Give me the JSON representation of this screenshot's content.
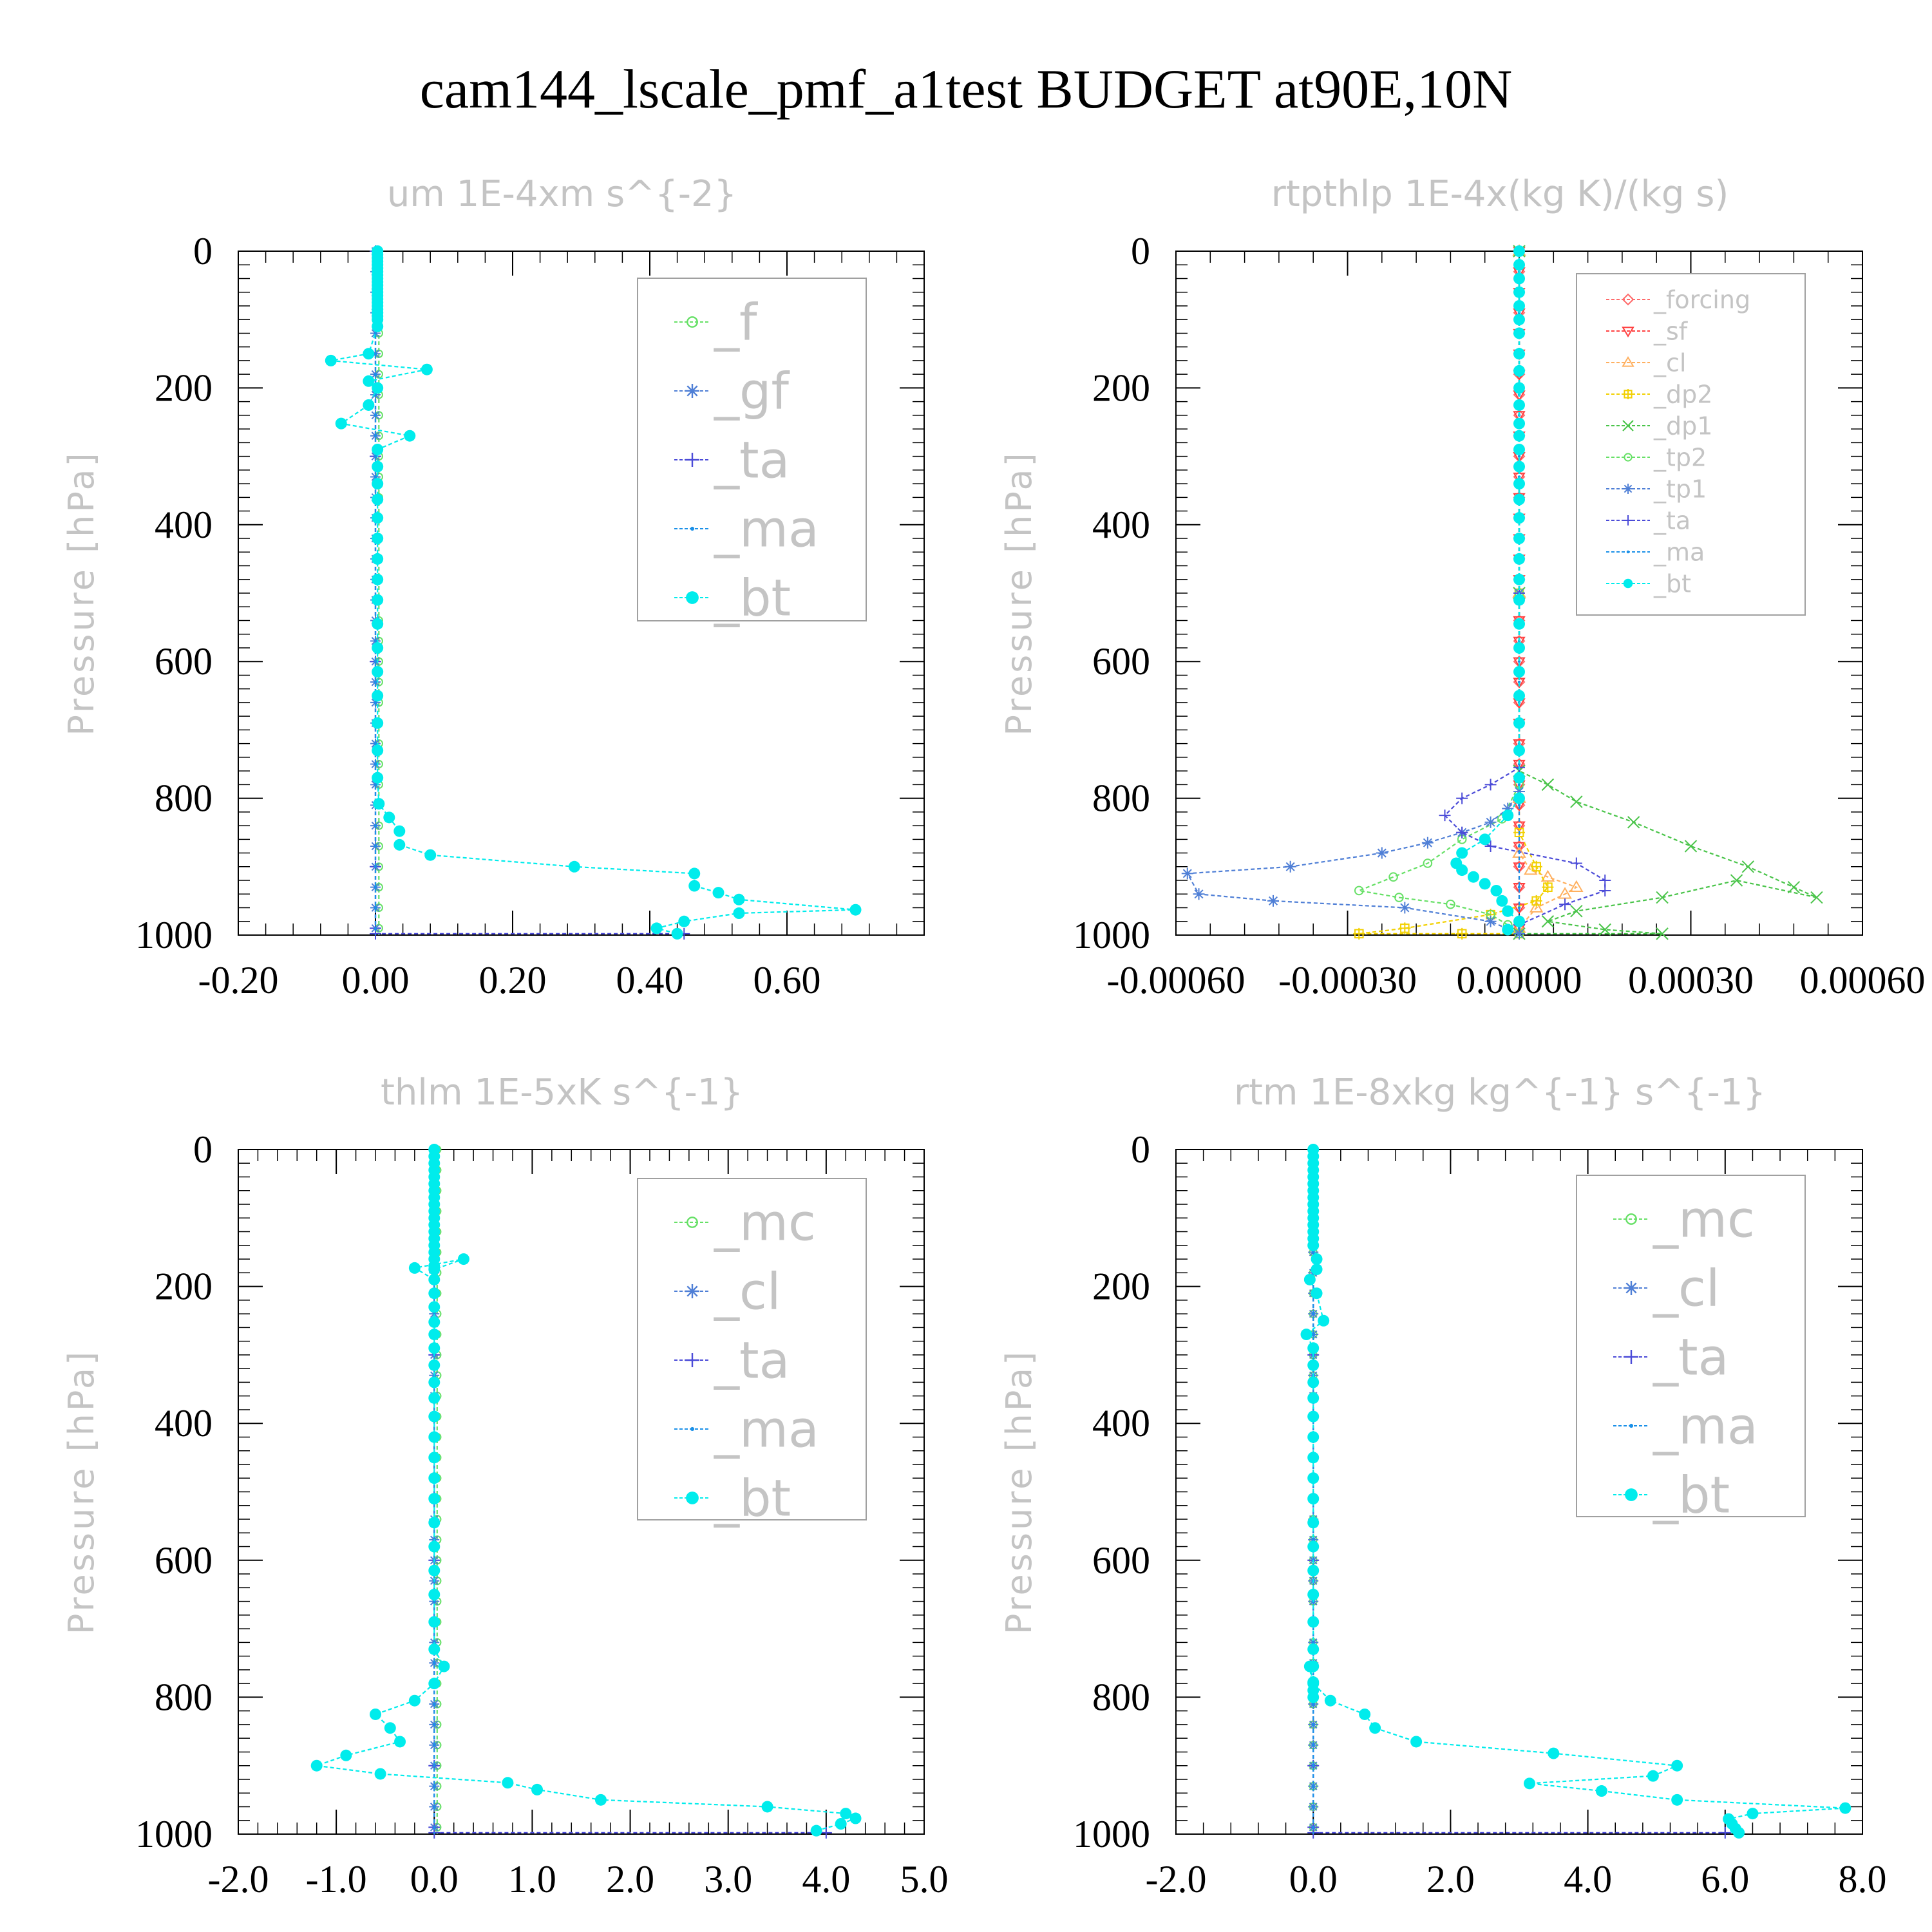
{
  "title": "cam144_lscale_pmf_a1test  BUDGET at90E,10N",
  "colors": {
    "forcing": "#ff6a6a",
    "sf": "#ff4040",
    "cl_tp": "#ffb060",
    "dp2": "#f2d000",
    "dp1": "#49c449",
    "tp2": "#66e066",
    "tp1": "#4f7fd6",
    "ta": "#4b4bd8",
    "ma": "#1a90e8",
    "bt": "#00ecec",
    "f": "#66e066",
    "gf": "#4f7fd6",
    "mc": "#66e066",
    "cl": "#4f7fd6"
  },
  "chart_data": [
    {
      "type": "line",
      "title": "um   1E-4xm s^{-2}",
      "ylabel": "Pressure [hPa]",
      "xlim": [
        -0.2,
        0.8
      ],
      "ylim": [
        1000,
        0
      ],
      "xticks": [
        "-0.20",
        "0.00",
        "0.20",
        "0.40",
        "0.60"
      ],
      "yticks": [
        "0",
        "200",
        "400",
        "600",
        "800",
        "1000"
      ],
      "legend": "top-right",
      "series": [
        {
          "name": "_f",
          "marker": "circle-open",
          "color_key": "f",
          "x": [
            0.005
          ],
          "y": [
            0
          ]
        },
        {
          "name": "_gf",
          "marker": "star",
          "color_key": "gf",
          "x": [
            0.0
          ],
          "y": [
            0
          ]
        },
        {
          "name": "_ta",
          "marker": "plus",
          "color_key": "ta",
          "x": [
            0,
            0,
            0,
            0,
            0,
            0,
            0.45
          ],
          "y": [
            0,
            300,
            600,
            900,
            990,
            998,
            998
          ]
        },
        {
          "name": "_ma",
          "marker": "dot",
          "color_key": "ma",
          "x": [
            0
          ],
          "y": [
            0
          ]
        },
        {
          "name": "_bt",
          "marker": "dot-filled",
          "color_key": "bt",
          "x": [
            0.003,
            0.003,
            0.003,
            0.003,
            0.003,
            0.003,
            0.003,
            0.003,
            0.003,
            0.003,
            0.003,
            0.003,
            0.003,
            0.003,
            0.003,
            0.003,
            0.003,
            0.003,
            0.003,
            0.003,
            0.003,
            0.003,
            -0.01,
            -0.065,
            0.075,
            -0.01,
            0.003,
            -0.01,
            -0.05,
            0.05,
            0.003,
            0.003,
            0.003,
            0.003,
            0.003,
            0.003,
            0.003,
            0.003,
            0.003,
            0.003,
            0.003,
            0.003,
            0.003,
            0.003,
            0.003,
            0.003,
            0.005,
            0.02,
            0.035,
            0.035,
            0.08,
            0.29,
            0.465,
            0.465,
            0.5,
            0.53,
            0.7,
            0.53,
            0.45,
            0.41,
            0.44
          ],
          "y": [
            0,
            5,
            10,
            15,
            20,
            25,
            30,
            35,
            40,
            45,
            50,
            55,
            60,
            65,
            70,
            75,
            80,
            85,
            90,
            95,
            100,
            110,
            150,
            160,
            173,
            190,
            200,
            225,
            252,
            270,
            290,
            315,
            340,
            363,
            390,
            420,
            450,
            480,
            510,
            545,
            580,
            615,
            650,
            690,
            730,
            770,
            808,
            828,
            848,
            868,
            883,
            900,
            910,
            928,
            938,
            948,
            963,
            968,
            980,
            990,
            998
          ]
        }
      ]
    },
    {
      "type": "line",
      "title": "rtpthlp   1E-4x(kg K)/(kg s)",
      "ylabel": "Pressure [hPa]",
      "xlim": [
        -0.0006,
        0.0006
      ],
      "ylim": [
        1000,
        0
      ],
      "xticks": [
        "-0.00060",
        "-0.00030",
        "0.00000",
        "0.00030",
        "0.00060"
      ],
      "yticks": [
        "0",
        "200",
        "400",
        "600",
        "800",
        "1000"
      ],
      "legend": "top-right",
      "series": [
        {
          "name": "_forcing",
          "marker": "diamond",
          "color_key": "forcing",
          "x": [
            0.0
          ],
          "y": [
            0
          ]
        },
        {
          "name": "_sf",
          "marker": "triangle-down",
          "color_key": "sf",
          "x": [
            0.0
          ],
          "y": [
            0
          ]
        },
        {
          "name": "_cl",
          "marker": "triangle-up",
          "color_key": "cl_tp",
          "x": [
            0,
            0,
            0,
            0,
            2e-05,
            5e-05,
            0.0001,
            8e-05,
            3e-05,
            0
          ],
          "y": [
            0,
            500,
            800,
            880,
            905,
            915,
            930,
            940,
            960,
            990
          ]
        },
        {
          "name": "_dp2",
          "marker": "square-plus",
          "color_key": "dp2",
          "x": [
            0,
            0,
            0,
            3e-05,
            5e-05,
            3e-05,
            -5e-05,
            -0.0002,
            -0.00028,
            -0.0001,
            0
          ],
          "y": [
            0,
            500,
            850,
            900,
            930,
            950,
            970,
            990,
            998,
            998,
            998
          ]
        },
        {
          "name": "_dp1",
          "marker": "cross",
          "color_key": "dp1",
          "x": [
            0,
            0,
            0,
            5e-05,
            0.0001,
            0.0002,
            0.0003,
            0.0004,
            0.00048,
            0.00052,
            0.00038,
            0.00025,
            0.0001,
            5e-05,
            0.00015,
            0.00025,
            0
          ],
          "y": [
            0,
            500,
            760,
            780,
            805,
            835,
            870,
            900,
            930,
            945,
            920,
            945,
            965,
            980,
            992,
            998,
            998
          ]
        },
        {
          "name": "_tp2",
          "marker": "circle-open",
          "color_key": "tp2",
          "x": [
            0,
            0,
            0,
            -3e-05,
            -0.0001,
            -0.00016,
            -0.00022,
            -0.00028,
            -0.00021,
            -0.00012,
            -5e-05,
            -2e-05,
            0
          ],
          "y": [
            0,
            500,
            780,
            830,
            860,
            895,
            915,
            935,
            945,
            955,
            970,
            985,
            998
          ]
        },
        {
          "name": "_tp1",
          "marker": "star",
          "color_key": "tp1",
          "x": [
            0,
            0,
            0,
            -2e-05,
            -5e-05,
            -0.0001,
            -0.00016,
            -0.00024,
            -0.0004,
            -0.00058,
            -0.00056,
            -0.00043,
            -0.0002,
            -5e-05,
            0
          ],
          "y": [
            0,
            500,
            790,
            815,
            835,
            850,
            865,
            880,
            900,
            910,
            940,
            950,
            960,
            980,
            998
          ]
        },
        {
          "name": "_ta",
          "marker": "plus",
          "color_key": "ta",
          "x": [
            0,
            0,
            0,
            -5e-05,
            -0.0001,
            -0.00013,
            -0.0001,
            -5e-05,
            0.0001,
            0.00015,
            0.00015,
            8e-05,
            0
          ],
          "y": [
            0,
            500,
            755,
            780,
            800,
            825,
            850,
            870,
            895,
            920,
            935,
            955,
            985
          ]
        },
        {
          "name": "_ma",
          "marker": "dot",
          "color_key": "ma",
          "x": [
            0
          ],
          "y": [
            0
          ]
        },
        {
          "name": "_bt",
          "marker": "dot-filled",
          "color_key": "bt",
          "x": [
            0,
            0,
            0,
            0,
            0,
            0,
            0,
            0,
            0,
            0,
            0,
            0,
            0,
            0,
            0,
            0,
            0,
            0,
            0,
            0,
            0,
            0,
            0,
            0,
            0,
            0,
            0,
            0,
            0,
            0,
            -2e-05,
            -6e-05,
            -0.0001,
            -0.00011,
            -0.0001,
            -8e-05,
            -6e-05,
            -4e-05,
            -3e-05,
            -2e-05,
            0,
            -2e-05
          ],
          "y": [
            0,
            20,
            40,
            60,
            80,
            100,
            120,
            150,
            175,
            200,
            225,
            252,
            270,
            290,
            315,
            340,
            363,
            390,
            420,
            450,
            480,
            510,
            545,
            580,
            615,
            650,
            690,
            730,
            770,
            800,
            825,
            860,
            880,
            895,
            905,
            915,
            925,
            935,
            950,
            965,
            980,
            992
          ]
        }
      ]
    },
    {
      "type": "line",
      "title": "thlm   1E-5xK s^{-1}",
      "ylabel": "Pressure [hPa]",
      "xlim": [
        -2.0,
        5.0
      ],
      "ylim": [
        1000,
        0
      ],
      "xticks": [
        "-2.0",
        "-1.0",
        "0.0",
        "1.0",
        "2.0",
        "3.0",
        "4.0",
        "5.0"
      ],
      "yticks": [
        "0",
        "200",
        "400",
        "600",
        "800",
        "1000"
      ],
      "legend": "top-right",
      "series": [
        {
          "name": "_mc",
          "marker": "circle-open",
          "color_key": "mc",
          "x": [
            0.03
          ],
          "y": [
            0
          ]
        },
        {
          "name": "_cl",
          "marker": "star",
          "color_key": "cl",
          "x": [
            0.0
          ],
          "y": [
            0
          ]
        },
        {
          "name": "_ta",
          "marker": "plus",
          "color_key": "ta",
          "x": [
            0,
            0,
            0,
            0,
            0,
            0,
            4.0
          ],
          "y": [
            0,
            300,
            600,
            900,
            990,
            998,
            998
          ]
        },
        {
          "name": "_ma",
          "marker": "dot",
          "color_key": "ma",
          "x": [
            0
          ],
          "y": [
            0
          ]
        },
        {
          "name": "_bt",
          "marker": "dot-filled",
          "color_key": "bt",
          "x": [
            0,
            0,
            0,
            0,
            0,
            0,
            0,
            0,
            0,
            0,
            0,
            0,
            0,
            0,
            0,
            0,
            0,
            0,
            0,
            0.3,
            -0.2,
            0,
            0,
            0,
            0,
            0,
            0,
            0,
            0,
            0,
            0,
            0,
            0,
            0,
            0,
            0,
            0,
            0,
            0,
            0,
            0,
            0.1,
            0,
            -0.2,
            -0.6,
            -0.45,
            -0.35,
            -0.9,
            -1.2,
            -0.55,
            0.75,
            1.05,
            1.7,
            3.4,
            4.2,
            4.3,
            4.15,
            3.9
          ],
          "y": [
            0,
            10,
            20,
            30,
            40,
            50,
            60,
            70,
            80,
            90,
            100,
            110,
            120,
            130,
            140,
            150,
            160,
            170,
            175,
            160,
            173,
            190,
            210,
            230,
            252,
            270,
            290,
            315,
            340,
            363,
            390,
            420,
            450,
            480,
            510,
            545,
            580,
            615,
            650,
            690,
            730,
            755,
            780,
            805,
            825,
            845,
            865,
            885,
            900,
            912,
            925,
            935,
            950,
            960,
            970,
            977,
            985,
            995
          ]
        }
      ]
    },
    {
      "type": "line",
      "title": "rtm   1E-8xkg kg^{-1} s^{-1}",
      "ylabel": "Pressure [hPa]",
      "xlim": [
        -2.0,
        8.0
      ],
      "ylim": [
        1000,
        0
      ],
      "xticks": [
        "-2.0",
        "0.0",
        "2.0",
        "4.0",
        "6.0",
        "8.0"
      ],
      "yticks": [
        "0",
        "200",
        "400",
        "600",
        "800",
        "1000"
      ],
      "legend": "top-right",
      "series": [
        {
          "name": "_mc",
          "marker": "circle-open",
          "color_key": "mc",
          "x": [
            0.0
          ],
          "y": [
            0
          ]
        },
        {
          "name": "_cl",
          "marker": "star",
          "color_key": "cl",
          "x": [
            0.0
          ],
          "y": [
            0
          ]
        },
        {
          "name": "_ta",
          "marker": "plus",
          "color_key": "ta",
          "x": [
            0,
            0,
            0,
            0,
            0,
            0,
            6.0
          ],
          "y": [
            0,
            300,
            600,
            900,
            990,
            998,
            998
          ]
        },
        {
          "name": "_ma",
          "marker": "dot",
          "color_key": "ma",
          "x": [
            0
          ],
          "y": [
            0
          ]
        },
        {
          "name": "_bt",
          "marker": "dot-filled",
          "color_key": "bt",
          "x": [
            0,
            0,
            0,
            0,
            0,
            0,
            0,
            0,
            0,
            0,
            0,
            0,
            0,
            0,
            0,
            0.05,
            0.05,
            -0.05,
            0.05,
            0.15,
            -0.1,
            0,
            0,
            0,
            0,
            0,
            0,
            0,
            0,
            0,
            0,
            0,
            0,
            0,
            0,
            0,
            0,
            0,
            0,
            0,
            -0.05,
            0,
            0.25,
            0.75,
            0.9,
            1.5,
            3.5,
            5.3,
            4.95,
            3.15,
            4.2,
            5.3,
            7.75,
            6.4,
            6.05,
            6.1,
            6.15,
            6.2
          ],
          "y": [
            0,
            10,
            20,
            30,
            40,
            50,
            60,
            70,
            80,
            90,
            100,
            110,
            120,
            130,
            140,
            160,
            175,
            190,
            210,
            250,
            270,
            290,
            315,
            340,
            363,
            390,
            420,
            450,
            480,
            510,
            545,
            580,
            615,
            650,
            690,
            730,
            755,
            778,
            790,
            800,
            755,
            780,
            805,
            825,
            845,
            865,
            882,
            900,
            915,
            926,
            937,
            950,
            962,
            970,
            978,
            985,
            992,
            998
          ]
        }
      ]
    }
  ]
}
